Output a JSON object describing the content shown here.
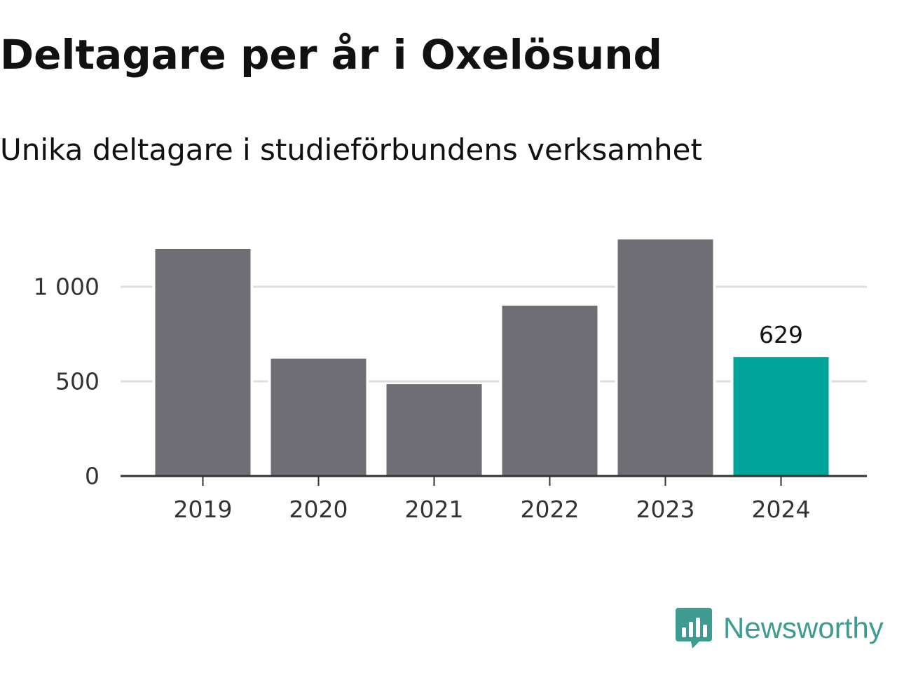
{
  "title": "Deltagare per år i Oxelösund",
  "subtitle": "Unika deltagare i studieförbundens verksamhet",
  "brand": {
    "name": "Newsworthy",
    "icon": "newsworthy-logo-icon",
    "color": "#3d9b91"
  },
  "colors": {
    "bar": "#6f6e74",
    "highlight": "#00a499",
    "grid": "#dddddd",
    "axis": "#333333",
    "text": "#111111"
  },
  "chart_data": {
    "type": "bar",
    "categories": [
      "2019",
      "2020",
      "2021",
      "2022",
      "2023",
      "2024"
    ],
    "values": [
      1200,
      620,
      485,
      900,
      1250,
      629
    ],
    "highlight_index": 5,
    "data_labels": [
      {
        "index": 5,
        "text": "629"
      }
    ],
    "y_ticks": [
      0,
      500,
      1000
    ],
    "y_tick_labels": [
      "0",
      "500",
      "1 000"
    ],
    "ylim": [
      0,
      1300
    ],
    "grid": "horizontal",
    "xlabel": "",
    "ylabel": ""
  }
}
